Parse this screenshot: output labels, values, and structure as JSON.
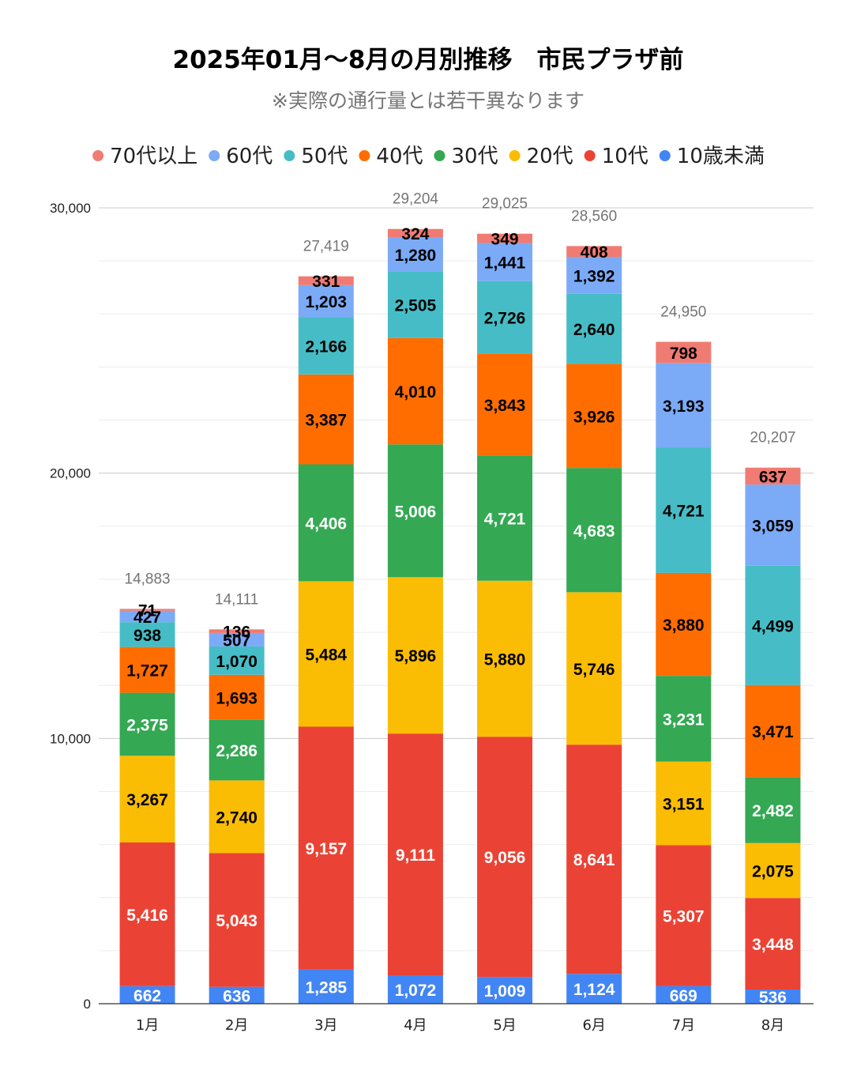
{
  "chart_data": {
    "type": "stacked-bar",
    "title": "2025年01月～8月の月別推移　市民プラザ前",
    "subtitle": "※実際の通行量とは若干異なります",
    "categories": [
      "1月",
      "2月",
      "3月",
      "4月",
      "5月",
      "6月",
      "7月",
      "8月"
    ],
    "ylim": [
      0,
      30000
    ],
    "y_ticks": [
      {
        "value": 0,
        "label": "0"
      },
      {
        "value": 10000,
        "label": "10,000"
      },
      {
        "value": 20000,
        "label": "20,000"
      },
      {
        "value": 30000,
        "label": "30,000"
      }
    ],
    "minor_grid_step": 2000,
    "legend_position": "top",
    "series": [
      {
        "name": "10歳未満",
        "color": "#4285F4",
        "label_color": "#ffffff",
        "values": [
          662,
          636,
          1285,
          1072,
          1009,
          1124,
          669,
          536
        ],
        "labels": [
          "662",
          "636",
          "1,285",
          "1,072",
          "1,009",
          "1,124",
          "669",
          "536"
        ]
      },
      {
        "name": "10代",
        "color": "#EA4335",
        "label_color": "#ffffff",
        "values": [
          5416,
          5043,
          9157,
          9111,
          9056,
          8641,
          5307,
          3448
        ],
        "labels": [
          "5,416",
          "5,043",
          "9,157",
          "9,111",
          "9,056",
          "8,641",
          "5,307",
          "3,448"
        ]
      },
      {
        "name": "20代",
        "color": "#FBBC04",
        "label_color": "#000000",
        "values": [
          3267,
          2740,
          5484,
          5896,
          5880,
          5746,
          3151,
          2075
        ],
        "labels": [
          "3,267",
          "2,740",
          "5,484",
          "5,896",
          "5,880",
          "5,746",
          "3,151",
          "2,075"
        ]
      },
      {
        "name": "30代",
        "color": "#34A853",
        "label_color": "#ffffff",
        "values": [
          2375,
          2286,
          4406,
          5006,
          4721,
          4683,
          3231,
          2482
        ],
        "labels": [
          "2,375",
          "2,286",
          "4,406",
          "5,006",
          "4,721",
          "4,683",
          "3,231",
          "2,482"
        ]
      },
      {
        "name": "40代",
        "color": "#FF6D01",
        "label_color": "#000000",
        "values": [
          1727,
          1693,
          3387,
          4010,
          3843,
          3926,
          3880,
          3471
        ],
        "labels": [
          "1,727",
          "1,693",
          "3,387",
          "4,010",
          "3,843",
          "3,926",
          "3,880",
          "3,471"
        ]
      },
      {
        "name": "50代",
        "color": "#46BDC6",
        "label_color": "#000000",
        "values": [
          938,
          1070,
          2166,
          2505,
          2726,
          2640,
          4721,
          4499
        ],
        "labels": [
          "938",
          "1,070",
          "2,166",
          "2,505",
          "2,726",
          "2,640",
          "4,721",
          "4,499"
        ]
      },
      {
        "name": "60代",
        "color": "#7BAAF7",
        "label_color": "#000000",
        "values": [
          427,
          507,
          1203,
          1280,
          1441,
          1392,
          3193,
          3059
        ],
        "labels": [
          "427",
          "507",
          "1,203",
          "1,280",
          "1,441",
          "1,392",
          "3,193",
          "3,059"
        ]
      },
      {
        "name": "70代以上",
        "color": "#F07B72",
        "label_color": "#000000",
        "values": [
          71,
          136,
          331,
          324,
          349,
          408,
          798,
          637
        ],
        "labels": [
          "71",
          "136",
          "331",
          "324",
          "349",
          "408",
          "798",
          "637"
        ]
      }
    ],
    "totals": [
      14883,
      14111,
      27419,
      29204,
      29025,
      28560,
      24950,
      20207
    ],
    "total_labels": [
      "14,883",
      "14,111",
      "27,419",
      "29,204",
      "29,025",
      "28,560",
      "24,950",
      "20,207"
    ],
    "legend_order": [
      "70代以上",
      "60代",
      "50代",
      "40代",
      "30代",
      "20代",
      "10代",
      "10歳未満"
    ]
  }
}
